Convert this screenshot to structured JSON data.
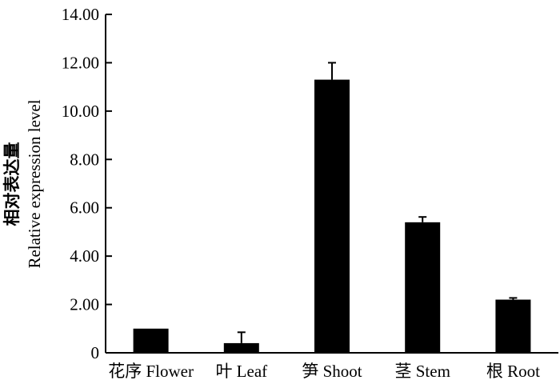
{
  "chart_data": {
    "type": "bar",
    "categories": [
      "花序 Flower",
      "叶 Leaf",
      "笋 Shoot",
      "茎 Stem",
      "根 Root"
    ],
    "values": [
      1.0,
      0.4,
      11.3,
      5.4,
      2.2
    ],
    "errors": [
      0.0,
      0.45,
      0.7,
      0.22,
      0.07
    ],
    "ylabel_cn": "相对表达量",
    "ylabel_en": "Relative expression level",
    "xlabel": "",
    "ylim": [
      0,
      14
    ],
    "yticks": [
      0,
      2,
      4,
      6,
      8,
      10,
      12,
      14
    ],
    "ytick_labels": [
      "0",
      "2.00",
      "4.00",
      "6.00",
      "8.00",
      "10.00",
      "12.00",
      "14.00"
    ],
    "bar_color": "#000000",
    "grid": false
  }
}
